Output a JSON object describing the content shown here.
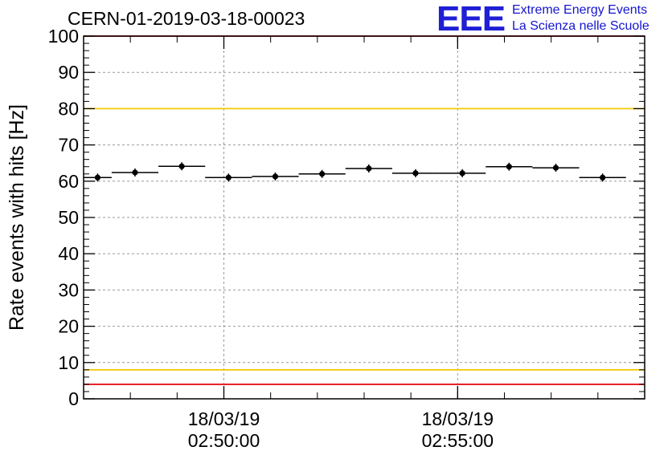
{
  "header": {
    "run_title": "CERN-01-2019-03-18-00023",
    "logo_mark": "EEE",
    "logo_line1": "Extreme Energy Events",
    "logo_line2": "La Scienza nelle Scuole"
  },
  "chart_data": {
    "type": "scatter",
    "title": "CERN-01-2019-03-18-00023",
    "xlabel": "",
    "ylabel": "Rate events with hits [Hz]",
    "ylim": [
      0,
      100
    ],
    "yticks": [
      0,
      10,
      20,
      30,
      40,
      50,
      60,
      70,
      80,
      90,
      100
    ],
    "xticks": [
      {
        "date": "18/03/19",
        "time": "02:50:00"
      },
      {
        "date": "18/03/19",
        "time": "02:55:00"
      }
    ],
    "x_start": "02:47:00",
    "x_end": "02:59:00",
    "grid": true,
    "reference_lines": [
      {
        "value": 100,
        "color": "#e8141c"
      },
      {
        "value": 80,
        "color": "#f2c800"
      },
      {
        "value": 8,
        "color": "#f2c800"
      },
      {
        "value": 4,
        "color": "#e8141c"
      }
    ],
    "points": [
      {
        "x_start": "02:47:00",
        "x_end": "02:47:36",
        "y": 61.0
      },
      {
        "x_start": "02:47:36",
        "x_end": "02:48:36",
        "y": 62.4
      },
      {
        "x_start": "02:48:36",
        "x_end": "02:49:36",
        "y": 64.1
      },
      {
        "x_start": "02:49:36",
        "x_end": "02:50:36",
        "y": 61.0
      },
      {
        "x_start": "02:50:36",
        "x_end": "02:51:36",
        "y": 61.3
      },
      {
        "x_start": "02:51:36",
        "x_end": "02:52:36",
        "y": 62.0
      },
      {
        "x_start": "02:52:36",
        "x_end": "02:53:36",
        "y": 63.5
      },
      {
        "x_start": "02:53:36",
        "x_end": "02:54:36",
        "y": 62.2
      },
      {
        "x_start": "02:54:36",
        "x_end": "02:55:36",
        "y": 62.2
      },
      {
        "x_start": "02:55:36",
        "x_end": "02:56:36",
        "y": 64.0
      },
      {
        "x_start": "02:56:36",
        "x_end": "02:57:36",
        "y": 63.7
      },
      {
        "x_start": "02:57:36",
        "x_end": "02:58:36",
        "y": 61.0
      }
    ]
  }
}
